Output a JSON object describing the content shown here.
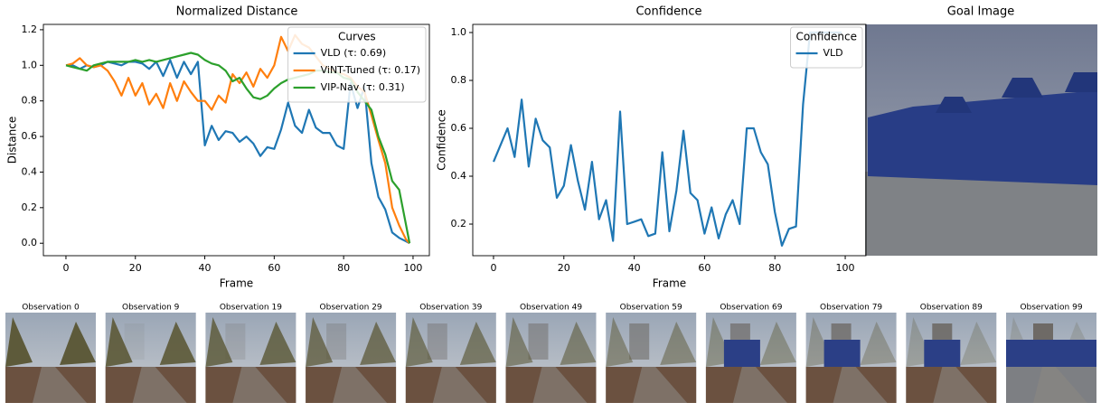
{
  "chart_data": [
    {
      "type": "line",
      "title": "Normalized Distance",
      "x_label": "Frame",
      "y_label": "Distance",
      "x": [
        0,
        2,
        4,
        6,
        8,
        10,
        12,
        14,
        16,
        18,
        20,
        22,
        24,
        26,
        28,
        30,
        32,
        34,
        36,
        38,
        40,
        42,
        44,
        46,
        48,
        50,
        52,
        54,
        56,
        58,
        60,
        62,
        64,
        66,
        68,
        70,
        72,
        74,
        76,
        78,
        80,
        82,
        84,
        86,
        88,
        90,
        92,
        94,
        96,
        98,
        99
      ],
      "series": [
        {
          "name": "VLD (τ: 0.69)",
          "color": "#1f77b4",
          "values": [
            1.0,
            1.0,
            0.98,
            1.0,
            0.99,
            1.0,
            1.02,
            1.01,
            1.0,
            1.02,
            1.02,
            1.01,
            0.98,
            1.02,
            0.94,
            1.03,
            0.93,
            1.02,
            0.95,
            1.02,
            0.55,
            0.66,
            0.58,
            0.63,
            0.62,
            0.57,
            0.6,
            0.56,
            0.49,
            0.54,
            0.53,
            0.64,
            0.79,
            0.66,
            0.62,
            0.75,
            0.65,
            0.62,
            0.62,
            0.55,
            0.53,
            0.9,
            0.76,
            0.88,
            0.45,
            0.26,
            0.19,
            0.06,
            0.03,
            0.01,
            0.0
          ]
        },
        {
          "name": "ViNT-Tuned (τ: 0.17)",
          "color": "#ff7f0e",
          "values": [
            1.0,
            1.01,
            1.04,
            1.0,
            0.99,
            1.0,
            0.97,
            0.91,
            0.83,
            0.93,
            0.83,
            0.9,
            0.78,
            0.84,
            0.76,
            0.9,
            0.8,
            0.91,
            0.85,
            0.8,
            0.8,
            0.75,
            0.83,
            0.79,
            0.95,
            0.9,
            0.96,
            0.88,
            0.98,
            0.93,
            1.0,
            1.16,
            1.08,
            1.17,
            1.12,
            1.1,
            1.05,
            1.0,
            0.98,
            0.96,
            0.95,
            0.93,
            0.88,
            0.85,
            0.72,
            0.58,
            0.45,
            0.2,
            0.1,
            0.02,
            0.0
          ]
        },
        {
          "name": "VIP-Nav (τ: 0.31)",
          "color": "#2ca02c",
          "values": [
            1.0,
            0.99,
            0.98,
            0.97,
            1.0,
            1.01,
            1.02,
            1.02,
            1.02,
            1.02,
            1.03,
            1.02,
            1.03,
            1.02,
            1.03,
            1.04,
            1.05,
            1.06,
            1.07,
            1.06,
            1.03,
            1.01,
            1.0,
            0.97,
            0.91,
            0.93,
            0.87,
            0.82,
            0.81,
            0.83,
            0.87,
            0.9,
            0.92,
            0.93,
            0.94,
            0.95,
            0.97,
            0.97,
            0.96,
            0.96,
            0.93,
            0.92,
            0.85,
            0.8,
            0.75,
            0.6,
            0.5,
            0.35,
            0.3,
            0.1,
            0.0
          ]
        }
      ],
      "legend_title": "Curves",
      "legend": "upper right",
      "xlim": [
        -6.5,
        104.7
      ],
      "xticks": [
        0,
        20,
        40,
        60,
        80,
        100
      ],
      "ylim": [
        -0.07,
        1.23
      ],
      "yticks": [
        {
          "value": 0,
          "label": "0.0"
        },
        0.2,
        0.4,
        0.6,
        0.8,
        {
          "value": 1,
          "label": "1.0"
        },
        1.2
      ]
    },
    {
      "type": "line",
      "title": "Confidence",
      "x_label": "Frame",
      "y_label": "Confidence",
      "x": [
        0,
        2,
        4,
        6,
        8,
        10,
        12,
        14,
        16,
        18,
        20,
        22,
        24,
        26,
        28,
        30,
        32,
        34,
        36,
        38,
        40,
        42,
        44,
        46,
        48,
        50,
        52,
        54,
        56,
        58,
        60,
        62,
        64,
        66,
        68,
        70,
        72,
        74,
        76,
        78,
        80,
        82,
        84,
        86,
        88,
        90,
        92,
        94,
        96,
        98,
        99
      ],
      "series": [
        {
          "name": "VLD",
          "color": "#1f77b4",
          "values": [
            0.46,
            0.53,
            0.6,
            0.48,
            0.72,
            0.44,
            0.64,
            0.55,
            0.52,
            0.31,
            0.36,
            0.53,
            0.38,
            0.26,
            0.46,
            0.22,
            0.3,
            0.13,
            0.67,
            0.2,
            0.21,
            0.22,
            0.15,
            0.16,
            0.5,
            0.17,
            0.34,
            0.59,
            0.33,
            0.3,
            0.16,
            0.27,
            0.14,
            0.24,
            0.3,
            0.2,
            0.6,
            0.6,
            0.5,
            0.45,
            0.25,
            0.11,
            0.18,
            0.19,
            0.7,
            1.0,
            1.0,
            1.0,
            1.0,
            1.0,
            1.0
          ]
        }
      ],
      "legend_title": "Confidence",
      "legend": "upper right",
      "xlim": [
        -5.9,
        105.9
      ],
      "xticks": [
        0,
        20,
        40,
        60,
        80,
        100
      ],
      "ylim": [
        0.068,
        1.034
      ],
      "yticks": [
        0.2,
        0.4,
        0.6,
        0.8,
        {
          "value": 1,
          "label": "1.0"
        }
      ]
    }
  ],
  "goal_image": {
    "title": "Goal Image"
  },
  "observations": [
    "Observation 0",
    "Observation 9",
    "Observation 19",
    "Observation 29",
    "Observation 39",
    "Observation 49",
    "Observation 59",
    "Observation 69",
    "Observation 79",
    "Observation 89",
    "Observation 99"
  ]
}
